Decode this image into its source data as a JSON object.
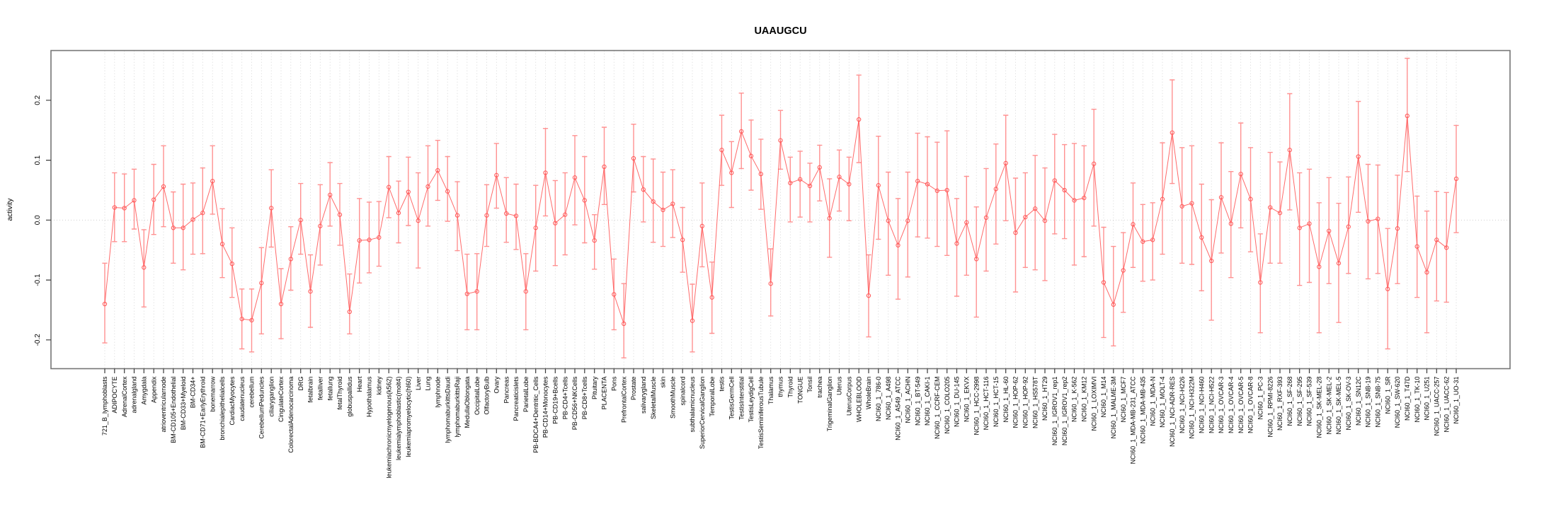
{
  "chart_data": {
    "type": "line",
    "title": "UAAUGCU",
    "xlabel": "",
    "ylabel": "activity",
    "grid": "vertical-dashed-per-category, dotted zero line",
    "legend": "none",
    "marker": "open-circle with error bars",
    "ylim": [
      -0.248,
      0.283
    ],
    "y_ticks": [
      -0.2,
      -0.1,
      0.0,
      0.1,
      0.2
    ],
    "y_tick_labels": [
      "-0.2",
      "-0.1",
      "0.0",
      "0.1",
      "0.2"
    ],
    "colors": {
      "series": "#ff5a5a",
      "error_bar": "#ff9191",
      "gridline": "#dddddd",
      "zero_line": "#c9c9c9",
      "frame": "#757575",
      "tick": "#3a3a3a",
      "text": "#000000",
      "background": "#ffffff"
    },
    "categories": [
      "721_B_lymphoblasts",
      "ADIPOCYTE",
      "AdrenalCortex",
      "adrenalgland",
      "Amygdala",
      "Appendix",
      "atrioventricularnode",
      "BM-CD105+Endothelial",
      "BM-CD33+Myeloid",
      "BM-CD34+",
      "BM-CD71+EarlyErythroid",
      "bonemarrow",
      "bronchialepithelialcells",
      "CardiacMyocytes",
      "caudatenucleus",
      "cerebellum",
      "CerebellumPeduncles",
      "ciliaryganglion",
      "CingulateCortex",
      "ColorectalAdenocarcinoma",
      "DRG",
      "fetalbrain",
      "fetalliver",
      "fetallung",
      "fetalThyroid",
      "globuspallidus",
      "Heart",
      "Hypothalamus",
      "kidney",
      "leukemiachronicmyelogenous(k562)",
      "leukemialymphoblastic(molt4)",
      "leukemiapromyelocytic(hl60)",
      "Liver",
      "Lung",
      "lymphnode",
      "lymphomaburkittsDaudi",
      "lymphomaburkittsRaji",
      "MedullaOblongata",
      "OccipitalLobe",
      "OlfactoryBulb",
      "Ovary",
      "Pancreas",
      "Pancreaticislets",
      "ParietalLobe",
      "PB-BDCA4+Dentritic_Cells",
      "PB-CD14+Monocytes",
      "PB-CD19+Bcells",
      "PB-CD4+Tcells",
      "PB-CD56+NKCells",
      "PB-CD8+Tcells",
      "Pituitary",
      "PLACENTA",
      "Pons",
      "PrefrontalCortex",
      "Prostate",
      "salivarygland",
      "SkeletalMuscle",
      "skin",
      "SmoothMuscle",
      "spinalcord",
      "subthalamicnucleus",
      "SuperiorCervicalGanglion",
      "TemporalLobe",
      "testis",
      "TestisGermCell",
      "TestisInterstitial",
      "TestisLeydigCell",
      "TestisSeminiferousTubule",
      "Thalamus",
      "thymus",
      "Thyroid",
      "TONGUE",
      "Tonsil",
      "trachea",
      "TrigeminalGanglion",
      "Uterus",
      "UterusCorpus",
      "WHOLEBLOOD",
      "WholeBrain",
      "NCI60_1_786-0",
      "NCI60_1_A498",
      "NCI60_1_A549_ATCC",
      "NCI60_1_ACHN",
      "NCI60_1_BT-549",
      "NCI60_1_CAKI-1",
      "NCI60_1_CCRF-CEM",
      "NCI60_1_COLO205",
      "NCI60_1_DU-145",
      "NCI60_1_EKVX",
      "NCI60_1_HCC-2998",
      "NCI60_1_HCT-116",
      "NCI60_1_HCT-15",
      "NCI60_1_HL-60",
      "NCI60_1_HOP-62",
      "NCI60_1_HOP-92",
      "NCI60_1_HS578T",
      "NCI60_1_HT29",
      "NCI60_1_IGROV1_rep1",
      "NCI60_1_IGROV1_rep2",
      "NCI60_1_K-562",
      "NCI60_1_KM12",
      "NCI60_1_LOXIMVI",
      "NCI60_1_M14",
      "NCI60_1_MALME-3M",
      "NCI60_1_MCF7",
      "NCI60_1_MDA-MB-231_ATCC",
      "NCI60_1_MDA-MB-435",
      "NCI60_1_MDA-N",
      "NCI60_1_MOLT-4",
      "NCI60_1_NCI-ADR-RES",
      "NCI60_1_NCI-H226",
      "NCI60_1_NCI-H322M",
      "NCI60_1_NCI-H460",
      "NCI60_1_NCI-H522",
      "NCI60_1_OVCAR-3",
      "NCI60_1_OVCAR-4",
      "NCI60_1_OVCAR-5",
      "NCI60_1_OVCAR-8",
      "NCI60_1_PC-3",
      "NCI60_1_RPMI-8226",
      "NCI60_1_RXF-393",
      "NCI60_1_SF-268",
      "NCI60_1_SF-295",
      "NCI60_1_SF-539",
      "NCI60_1_SK-MEL-28",
      "NCI60_1_SK-MEL-2",
      "NCI60_1_SK-MEL-5",
      "NCI60_1_SK-OV-3",
      "NCI60_1_SN12C",
      "NCI60_1_SNB-19",
      "NCI60_1_SNB-75",
      "NCI60_1_SR",
      "NCI60_1_SW-620",
      "NCI60_1_T47D",
      "NCI60_1_TK-10",
      "NCI60_1_U251",
      "NCI60_1_UACC-257",
      "NCI60_1_UACC-62",
      "NCI60_1_UO-31"
    ],
    "values": [
      -0.14,
      0.021,
      0.02,
      0.033,
      -0.079,
      0.034,
      0.056,
      -0.013,
      -0.013,
      0.001,
      0.012,
      0.065,
      -0.04,
      -0.073,
      -0.165,
      -0.167,
      -0.105,
      0.02,
      -0.14,
      -0.065,
      0.0,
      -0.119,
      -0.01,
      0.042,
      0.009,
      -0.153,
      -0.034,
      -0.033,
      -0.029,
      0.055,
      0.012,
      0.047,
      -0.001,
      0.056,
      0.083,
      0.048,
      0.008,
      -0.123,
      -0.119,
      0.008,
      0.075,
      0.011,
      0.007,
      -0.119,
      -0.013,
      0.079,
      -0.005,
      0.009,
      0.071,
      0.033,
      -0.034,
      0.089,
      -0.124,
      -0.173,
      0.103,
      0.051,
      0.031,
      0.017,
      0.027,
      -0.033,
      -0.168,
      -0.01,
      -0.129,
      0.117,
      0.079,
      0.148,
      0.107,
      0.077,
      -0.106,
      0.133,
      0.062,
      0.068,
      0.057,
      0.088,
      0.003,
      0.072,
      0.06,
      0.168,
      -0.126,
      0.058,
      -0.001,
      -0.042,
      -0.001,
      0.065,
      0.06,
      0.049,
      0.05,
      -0.039,
      -0.004,
      -0.065,
      0.004,
      0.052,
      0.095,
      -0.021,
      0.005,
      0.019,
      -0.001,
      0.066,
      0.05,
      0.033,
      0.037,
      0.094,
      -0.104,
      -0.141,
      -0.084,
      -0.007,
      -0.036,
      -0.033,
      0.035,
      0.146,
      0.023,
      0.028,
      -0.029,
      -0.068,
      0.038,
      -0.006,
      0.077,
      0.035,
      -0.104,
      0.021,
      0.012,
      0.117,
      -0.013,
      -0.006,
      -0.078,
      -0.018,
      -0.072,
      -0.011,
      0.106,
      -0.002,
      0.002,
      -0.115,
      -0.014,
      0.174,
      -0.044,
      -0.087,
      -0.033,
      -0.046,
      0.069
    ],
    "lower": [
      -0.205,
      -0.036,
      -0.036,
      -0.015,
      -0.145,
      -0.024,
      -0.011,
      -0.072,
      -0.083,
      -0.057,
      -0.056,
      0.01,
      -0.096,
      -0.129,
      -0.215,
      -0.22,
      -0.19,
      -0.045,
      -0.198,
      -0.117,
      -0.057,
      -0.179,
      -0.075,
      -0.01,
      -0.042,
      -0.19,
      -0.105,
      -0.088,
      -0.077,
      0.004,
      -0.038,
      -0.009,
      -0.08,
      -0.01,
      0.033,
      -0.002,
      -0.051,
      -0.183,
      -0.183,
      -0.044,
      0.02,
      -0.037,
      -0.049,
      -0.183,
      -0.085,
      0.007,
      -0.076,
      -0.058,
      -0.008,
      -0.038,
      -0.082,
      0.026,
      -0.183,
      -0.23,
      0.047,
      -0.003,
      -0.037,
      -0.044,
      -0.029,
      -0.087,
      -0.22,
      -0.078,
      -0.189,
      0.058,
      0.021,
      0.086,
      0.05,
      0.018,
      -0.16,
      0.085,
      -0.003,
      0.005,
      -0.003,
      0.032,
      -0.062,
      0.015,
      -0.001,
      0.096,
      -0.195,
      -0.032,
      -0.092,
      -0.132,
      -0.095,
      -0.028,
      -0.03,
      -0.044,
      -0.059,
      -0.127,
      -0.092,
      -0.162,
      -0.085,
      -0.04,
      -0.001,
      -0.12,
      -0.079,
      -0.083,
      -0.101,
      -0.023,
      -0.031,
      -0.075,
      -0.061,
      -0.01,
      -0.196,
      -0.21,
      -0.154,
      -0.079,
      -0.102,
      -0.1,
      -0.057,
      0.061,
      -0.072,
      -0.074,
      -0.118,
      -0.167,
      -0.055,
      -0.096,
      -0.013,
      -0.053,
      -0.188,
      -0.072,
      -0.072,
      0.017,
      -0.109,
      -0.104,
      -0.188,
      -0.106,
      -0.171,
      -0.089,
      0.013,
      -0.098,
      -0.089,
      -0.215,
      -0.106,
      0.081,
      -0.129,
      -0.188,
      -0.135,
      -0.137,
      -0.021
    ],
    "upper": [
      -0.072,
      0.079,
      0.077,
      0.085,
      -0.016,
      0.093,
      0.124,
      0.047,
      0.06,
      0.062,
      0.087,
      0.124,
      0.019,
      -0.013,
      -0.115,
      -0.115,
      -0.046,
      0.084,
      -0.081,
      -0.011,
      0.061,
      -0.058,
      0.059,
      0.096,
      0.061,
      -0.09,
      0.036,
      0.03,
      0.031,
      0.106,
      0.065,
      0.105,
      0.079,
      0.124,
      0.133,
      0.106,
      0.064,
      -0.057,
      -0.056,
      0.059,
      0.128,
      0.071,
      0.06,
      -0.056,
      0.058,
      0.153,
      0.066,
      0.079,
      0.141,
      0.106,
      0.009,
      0.155,
      -0.065,
      -0.106,
      0.16,
      0.106,
      0.102,
      0.08,
      0.084,
      0.021,
      -0.107,
      0.062,
      -0.07,
      0.175,
      0.131,
      0.212,
      0.167,
      0.135,
      -0.048,
      0.183,
      0.105,
      0.115,
      0.095,
      0.125,
      0.069,
      0.117,
      0.105,
      0.242,
      -0.058,
      0.14,
      0.08,
      0.036,
      0.08,
      0.145,
      0.139,
      0.13,
      0.149,
      0.036,
      0.073,
      0.022,
      0.086,
      0.127,
      0.175,
      0.07,
      0.079,
      0.108,
      0.087,
      0.143,
      0.126,
      0.128,
      0.124,
      0.185,
      -0.012,
      -0.044,
      -0.021,
      0.062,
      0.026,
      0.029,
      0.129,
      0.234,
      0.121,
      0.124,
      0.06,
      0.034,
      0.129,
      0.081,
      0.162,
      0.121,
      -0.023,
      0.113,
      0.097,
      0.211,
      0.079,
      0.085,
      0.029,
      0.071,
      0.028,
      0.072,
      0.198,
      0.093,
      0.092,
      -0.014,
      0.075,
      0.27,
      0.04,
      0.015,
      0.048,
      0.046,
      0.158
    ]
  }
}
